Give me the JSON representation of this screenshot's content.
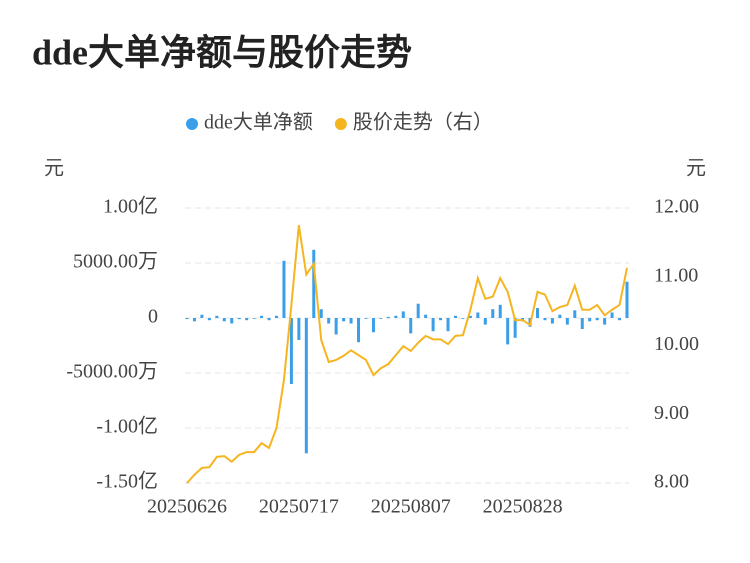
{
  "chart_data": {
    "type": "bar-line",
    "title": "dde大单净额与股价走势",
    "y_label": "元",
    "y2_label": "元",
    "categories": [
      "20250626",
      null,
      null,
      null,
      null,
      null,
      null,
      null,
      null,
      null,
      null,
      null,
      null,
      null,
      null,
      "20250717",
      null,
      null,
      null,
      null,
      null,
      null,
      null,
      null,
      null,
      null,
      null,
      null,
      null,
      null,
      "20250807",
      null,
      null,
      null,
      null,
      null,
      null,
      null,
      null,
      null,
      null,
      null,
      null,
      null,
      null,
      "20250828",
      null,
      null,
      null,
      null,
      null,
      null,
      null,
      null,
      null,
      null,
      null,
      null,
      null,
      null
    ],
    "ylim": [
      -150000000,
      100000000
    ],
    "yticks": [
      {
        "value": 100000000,
        "label": "1.00亿"
      },
      {
        "value": 50000000,
        "label": "5000.00万"
      },
      0,
      {
        "value": -50000000,
        "label": "-5000.00万"
      },
      {
        "value": -100000000,
        "label": "-1.00亿"
      },
      {
        "value": -150000000,
        "label": "-1.50亿"
      }
    ],
    "y2lim": [
      8,
      12
    ],
    "y2ticks": [
      {
        "value": 12,
        "label": "12.00"
      },
      {
        "value": 11,
        "label": "11.00"
      },
      {
        "value": 10,
        "label": "10.00"
      },
      {
        "value": 9,
        "label": "9.00"
      },
      {
        "value": 8,
        "label": "8.00"
      }
    ],
    "grid": true,
    "series": [
      {
        "name": "dde大单净额",
        "color": "#3a9ee8",
        "kind": "bar",
        "values": [
          -1000000,
          -3000000,
          3000000,
          -2000000,
          2000000,
          -3000000,
          -5000000,
          -1000000,
          -2000000,
          0,
          2000000,
          -2000000,
          2000000,
          52000000,
          -60000000,
          -20000000,
          -123000000,
          62000000,
          8000000,
          -5000000,
          -15000000,
          -3000000,
          -5000000,
          -22000000,
          0,
          -13000000,
          0,
          1000000,
          2000000,
          6000000,
          -14000000,
          13000000,
          3000000,
          -12000000,
          -2000000,
          -12000000,
          2000000,
          0,
          2000000,
          5000000,
          -6000000,
          8000000,
          12000000,
          -24000000,
          -18000000,
          -3000000,
          -8000000,
          9000000,
          -2000000,
          -5000000,
          3000000,
          -6000000,
          7000000,
          -10000000,
          -3000000,
          -2000000,
          -6000000,
          5000000,
          -2000000,
          33000000
        ]
      },
      {
        "name": "股价走势（右）",
        "color": "#f5b520",
        "kind": "line",
        "axis": "y2",
        "values": [
          8.0,
          8.12,
          8.22,
          8.23,
          8.38,
          8.39,
          8.31,
          8.41,
          8.45,
          8.45,
          8.58,
          8.51,
          8.8,
          9.5,
          10.59,
          11.75,
          11.03,
          11.19,
          10.08,
          9.76,
          9.79,
          9.85,
          9.93,
          9.86,
          9.79,
          9.57,
          9.67,
          9.73,
          9.86,
          9.99,
          9.92,
          10.04,
          10.14,
          10.09,
          10.09,
          10.02,
          10.14,
          10.15,
          10.52,
          10.98,
          10.68,
          10.71,
          10.98,
          10.78,
          10.37,
          10.37,
          10.3,
          10.78,
          10.74,
          10.5,
          10.56,
          10.59,
          10.87,
          10.52,
          10.52,
          10.59,
          10.44,
          10.52,
          10.59,
          11.13
        ]
      }
    ]
  }
}
